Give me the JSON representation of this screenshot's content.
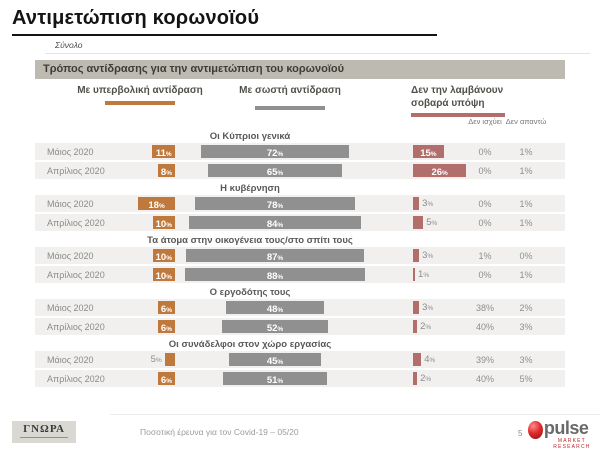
{
  "page": {
    "title": "Αντιμετώπιση κορωνοϊού",
    "subtitle": "Σύνολο"
  },
  "chart_data": {
    "type": "bar",
    "title": "Τρόπος αντίδρασης για την αντιμετώπιση  του κορωνοϊού",
    "unit": "%",
    "legend": [
      {
        "label": "Με υπερβολική αντίδραση",
        "color": "#c0793c"
      },
      {
        "label": "Με σωστή αντίδραση",
        "color": "#909090"
      },
      {
        "label": "Δεν την λαμβάνουν σοβαρά υπόψη",
        "color": "#b26e6b"
      }
    ],
    "small_columns": [
      "Δεν ισχύει",
      "Δεν απαντώ"
    ],
    "column_keys": [
      "overreaction",
      "correct_reaction",
      "not_taken_seriously",
      "not_applicable",
      "no_answer"
    ],
    "groups": [
      {
        "label": "Οι Κύπριοι γενικά",
        "rows": [
          {
            "label": "Μάιος 2020",
            "values": [
              11,
              72,
              15,
              0,
              1
            ]
          },
          {
            "label": "Απρίλιος 2020",
            "values": [
              8,
              65,
              26,
              0,
              1
            ]
          }
        ]
      },
      {
        "label": "Η κυβέρνηση",
        "rows": [
          {
            "label": "Μάιος 2020",
            "values": [
              18,
              78,
              3,
              0,
              1
            ]
          },
          {
            "label": "Απρίλιος 2020",
            "values": [
              10,
              84,
              5,
              0,
              1
            ]
          }
        ]
      },
      {
        "label": "Τα άτομα στην οικογένεια τους/στο σπίτι τους",
        "rows": [
          {
            "label": "Μάιος 2020",
            "values": [
              10,
              87,
              3,
              1,
              0
            ]
          },
          {
            "label": "Απρίλιος 2020",
            "values": [
              10,
              88,
              1,
              0,
              1
            ]
          }
        ]
      },
      {
        "label": "Ο εργοδότης τους",
        "rows": [
          {
            "label": "Μάιος 2020",
            "values": [
              6,
              48,
              3,
              38,
              2
            ]
          },
          {
            "label": "Απρίλιος 2020",
            "values": [
              6,
              52,
              2,
              40,
              3
            ]
          }
        ]
      },
      {
        "label": "Οι συνάδελφοι στον χώρο εργασίας",
        "rows": [
          {
            "label": "Μάιος 2020",
            "values": [
              5,
              45,
              4,
              39,
              3
            ]
          },
          {
            "label": "Απρίλιος 2020",
            "values": [
              6,
              51,
              2,
              40,
              5
            ]
          }
        ]
      }
    ]
  },
  "footer": {
    "gnora_logo": "ΓΝΩΡΑ",
    "caption": "Ποσοτική έρευνα για τον Covid-19 – 05/20",
    "page_number": "5",
    "pulse_logo": "pulse",
    "pulse_logo_sub": "market research"
  }
}
